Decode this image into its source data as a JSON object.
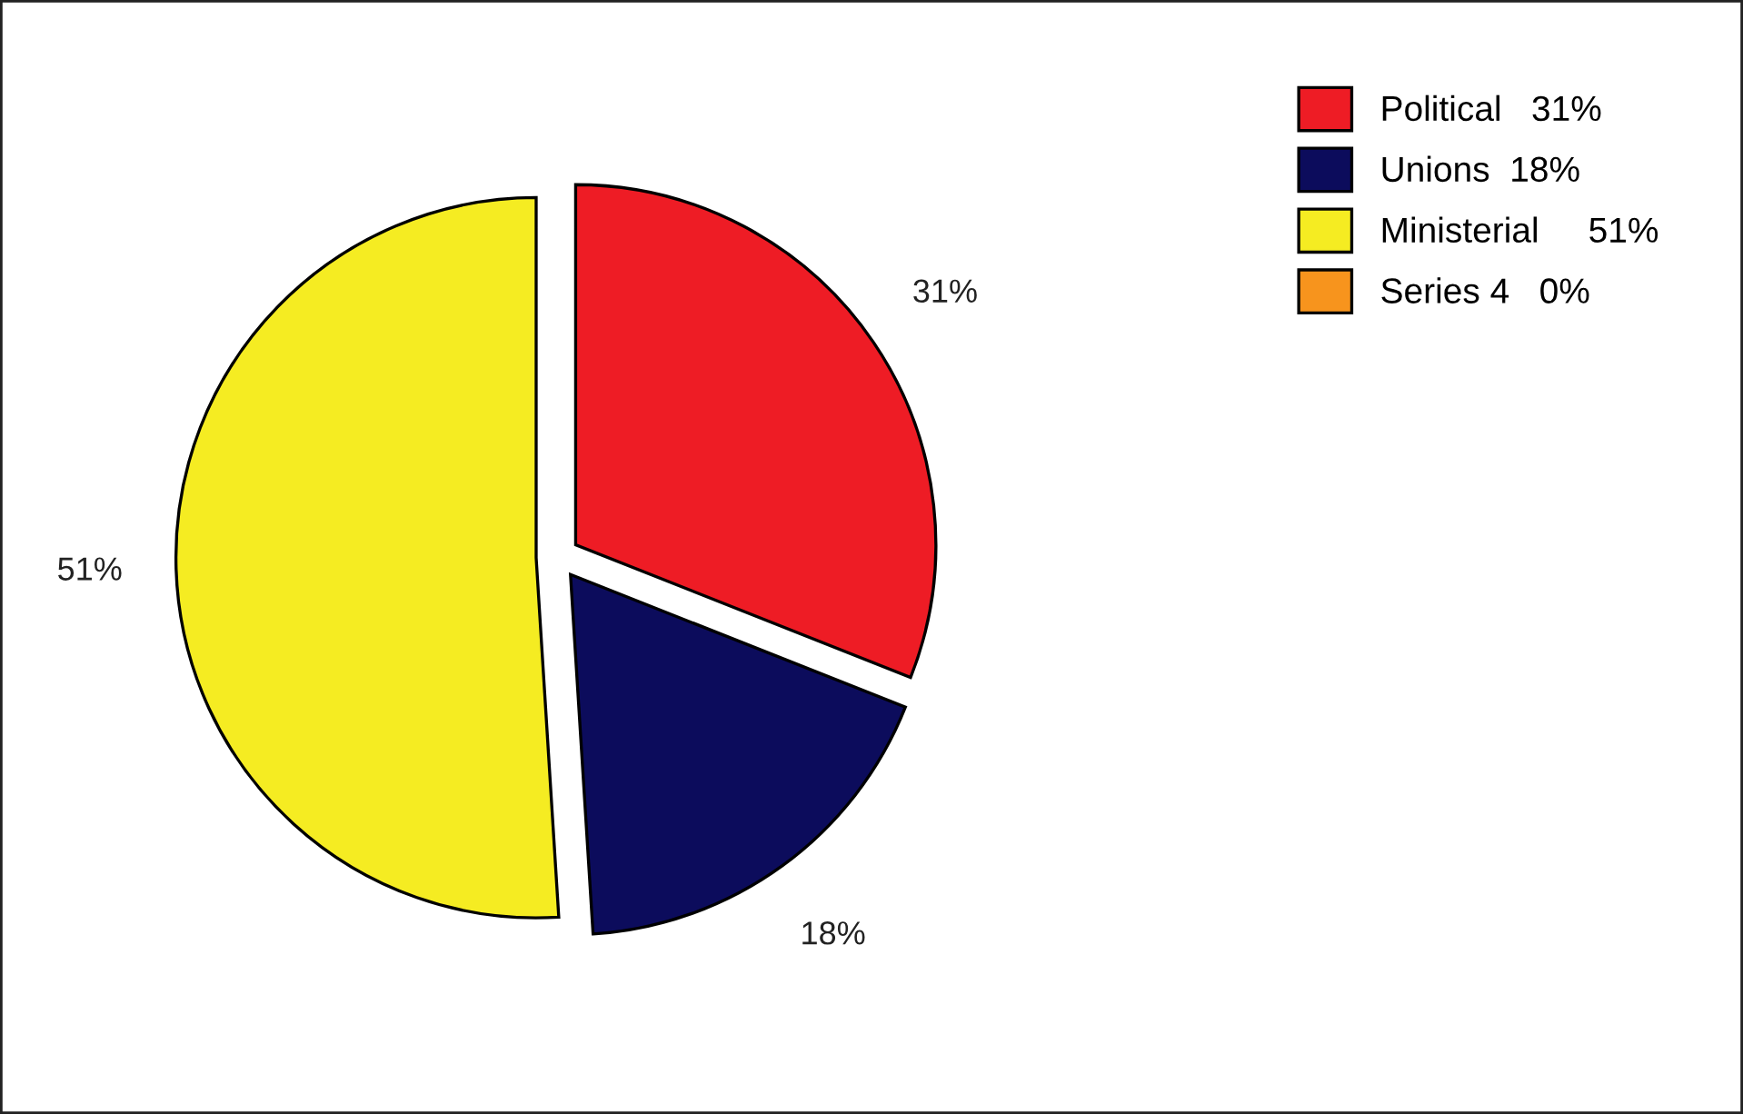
{
  "chart_data": {
    "type": "pie",
    "categories": [
      "Political   31%",
      "Unions  18%",
      "Ministerial     51%",
      "Series 4   0%"
    ],
    "values": [
      31,
      18,
      51,
      0
    ],
    "colors": [
      "#ee1c25",
      "#0c0c5c",
      "#f5ec22",
      "#f7941d"
    ],
    "value_labels": [
      "31%",
      "18%",
      "51%",
      null
    ],
    "legend": "top right"
  }
}
